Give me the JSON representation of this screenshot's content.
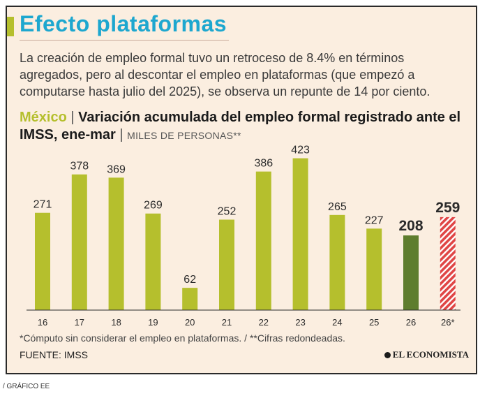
{
  "title": "Efecto plataformas",
  "intro": "La creación de empleo formal tuvo un retroceso de 8.4% en términos agregados, pero al descontar el empleo en plataformas (que empezó a computarse hasta julio del 2025), se observa un repunte de 14 por ciento.",
  "heading": {
    "country": "México",
    "separator": "|",
    "text": "Variación acumulada del empleo formal registrado ante el IMSS, ene-mar",
    "separator2": "|",
    "units": "MILES DE PERSONAS**"
  },
  "footnote": "*Cómputo sin considerar el empleo en plataformas. / **Cifras redondeadas.",
  "source": "FUENTE: IMSS",
  "brand": "EL ECONOMISTA",
  "credit": "/ GRÁFICO EE",
  "colors": {
    "bar": "#b5bf2d",
    "bar_highlight": "#5e7d2e",
    "bar_hatched": "#e04545",
    "title": "#1da7cf"
  },
  "chart_data": {
    "type": "bar",
    "title": "Variación acumulada del empleo formal registrado ante el IMSS, ene-mar",
    "xlabel": "",
    "ylabel": "MILES DE PERSONAS**",
    "categories": [
      "16",
      "17",
      "18",
      "19",
      "20",
      "21",
      "22",
      "23",
      "24",
      "25",
      "26",
      "26*"
    ],
    "values": [
      271,
      378,
      369,
      269,
      62,
      252,
      386,
      423,
      265,
      227,
      208,
      259
    ],
    "styles": [
      "normal",
      "normal",
      "normal",
      "normal",
      "normal",
      "normal",
      "normal",
      "normal",
      "normal",
      "normal",
      "highlight",
      "hatched"
    ],
    "ylim": [
      0,
      430
    ],
    "grid": false
  }
}
